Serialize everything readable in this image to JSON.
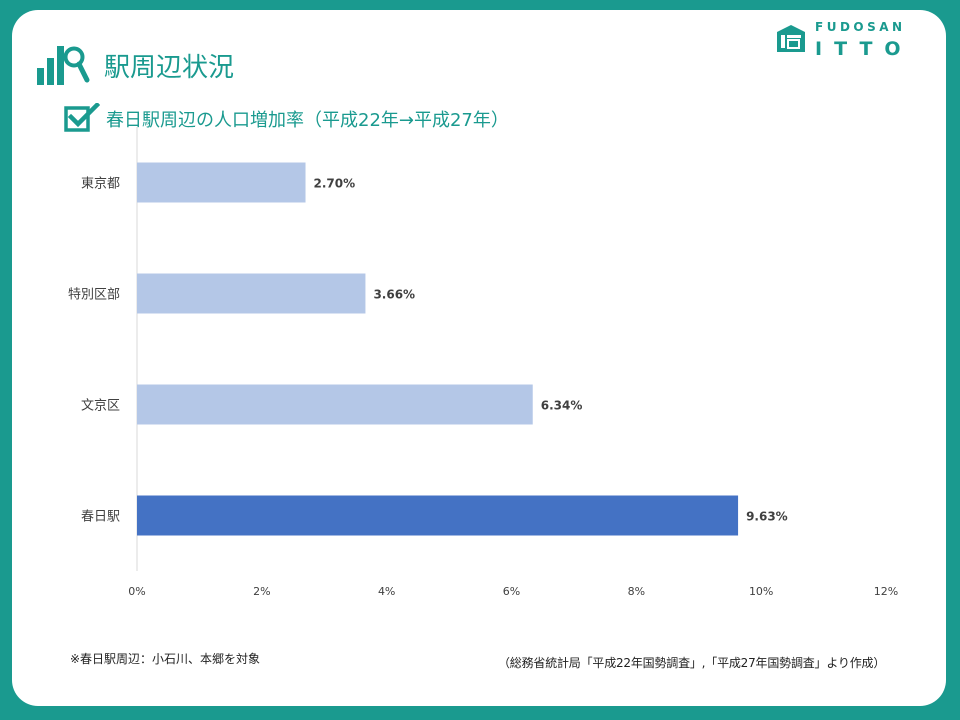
{
  "header": {
    "section_title": "駅周辺状況",
    "chart_title": "春日駅周辺の人口増加率（平成22年→平成27年）",
    "logo_top": "FUDOSAN",
    "logo_bottom": "ITTO"
  },
  "colors": {
    "background": "#1a9a8f",
    "accent": "#1a9a8f",
    "bar_default": "#b4c7e7",
    "bar_highlight": "#4472c4"
  },
  "icons": {
    "section": "bar-chart-magnifier-icon",
    "chart_title": "checkbox-checked-icon",
    "logo": "house-logo-icon"
  },
  "chart_data": {
    "type": "bar",
    "orientation": "horizontal",
    "categories": [
      "東京都",
      "特別区部",
      "文京区",
      "春日駅"
    ],
    "values": [
      2.7,
      3.66,
      6.34,
      9.63
    ],
    "data_labels": [
      "2.70%",
      "3.66%",
      "6.34%",
      "9.63%"
    ],
    "highlight_category": "春日駅",
    "xlim": [
      0,
      12
    ],
    "x_ticks": [
      "0%",
      "2%",
      "4%",
      "6%",
      "8%",
      "10%",
      "12%"
    ],
    "grid": false,
    "legend": "none"
  },
  "footer": {
    "note": "※春日駅周辺：小石川、本郷を対象",
    "source": "（総務省統計局「平成22年国勢調査」,「平成27年国勢調査」より作成）"
  }
}
